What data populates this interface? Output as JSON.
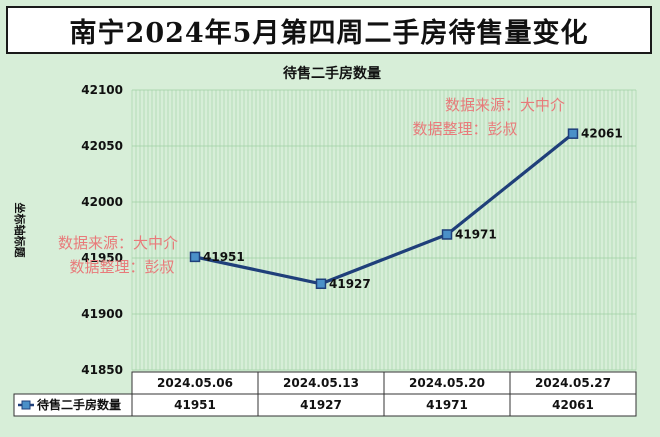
{
  "page": {
    "title": "南宁2024年5月第四周二手房待售量变化"
  },
  "chart_data": {
    "type": "line",
    "title": "待售二手房数量",
    "ylabel": "坐标轴标题",
    "xlabel": "",
    "categories": [
      "2024.05.06",
      "2024.05.13",
      "2024.05.20",
      "2024.05.27"
    ],
    "series": [
      {
        "name": "待售二手房数量",
        "values": [
          41951,
          41927,
          41971,
          42061
        ],
        "color": "#1f3f7a"
      }
    ],
    "ylim": [
      41850,
      42100
    ],
    "yticks": [
      41850,
      41900,
      41950,
      42000,
      42050,
      42100
    ],
    "grid": true,
    "legend": "data-table",
    "data_table": true
  },
  "watermarks": [
    {
      "line1": "数据来源：大中介",
      "line2": "数据整理：彭叔"
    },
    {
      "line1": "数据来源：大中介",
      "line2": "数据整理：彭叔"
    }
  ],
  "colors": {
    "background": "#d7eed8",
    "grid": "#9fd0a4",
    "line": "#1f3f7a",
    "marker": "#4a90c8",
    "watermark": "#e87a7a"
  }
}
